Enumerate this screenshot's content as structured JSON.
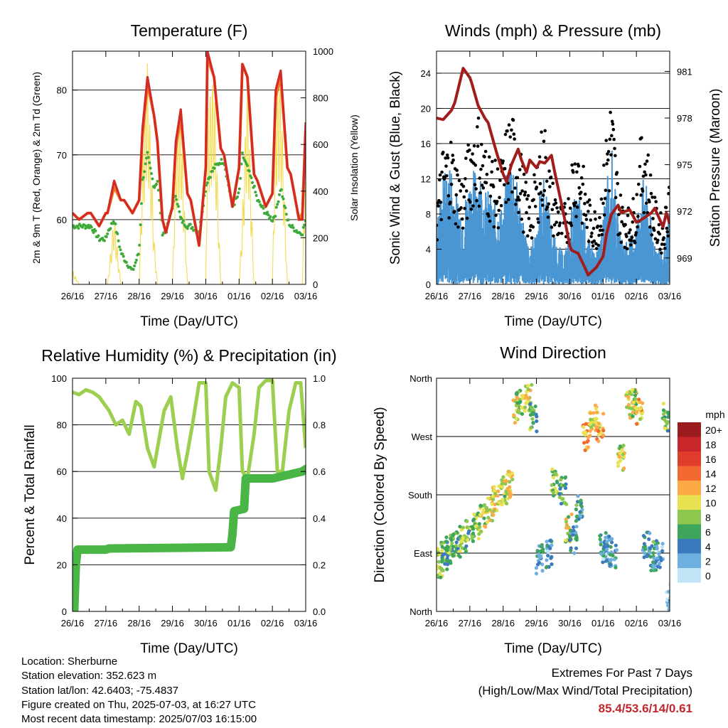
{
  "panels": {
    "temperature": {
      "title": "Temperature (F)",
      "ylabel_left": "2m & 9m T (Red, Orange) & 2m Td (Green)",
      "ylabel_right": "Solar Insolation (Yellow)",
      "xlabel": "Time (Day/UTC)"
    },
    "winds": {
      "title": "Winds (mph) & Pressure (mb)",
      "ylabel_left": "Sonic Wind & Gust (Blue, Black)",
      "ylabel_right": "Station Pressure (Maroon)",
      "xlabel": "Time (Day/UTC)"
    },
    "humidity": {
      "title": "Relative Humidity (%) & Precipitation (in)",
      "ylabel_left": "Percent & Total Rainfall",
      "xlabel": "Time (Day/UTC)"
    },
    "direction": {
      "title": "Wind Direction",
      "ylabel_left": "Direction (Colored By Speed)",
      "xlabel": "Time (Day/UTC)"
    }
  },
  "colorbar": {
    "unit": "mph",
    "labels": [
      "20+",
      "18",
      "16",
      "14",
      "12",
      "10",
      "8",
      "6",
      "4",
      "2",
      "0"
    ],
    "colors": [
      "#9b1c1f",
      "#c7262b",
      "#e03c2c",
      "#f26a32",
      "#fbaa47",
      "#e8e252",
      "#8cc84d",
      "#3ea55c",
      "#3b7bbd",
      "#6db0e0",
      "#bfe4f5"
    ]
  },
  "info": {
    "location": "Location: Sherburne",
    "elevation": "Station elevation: 352.623 m",
    "latlon": "Station lat/lon: 42.6403; -75.4837",
    "created": "Figure created on Thu, 2025-07-03, at 16:27 UTC",
    "recent": "Most recent data timestamp: 2025/07/03 16:15:00"
  },
  "extremes": {
    "title": "Extremes For Past 7 Days",
    "subtitle": "(High/Low/Max Wind/Total Precipitation)",
    "values": "85.4/53.6/14/0.61"
  },
  "colors": {
    "temp2m": "#d42a25",
    "temp9m": "#f0782d",
    "dewpoint": "#3eaa3a",
    "solar": "#f3dc55",
    "wind": "#4a96d2",
    "gust": "#000000",
    "pressure": "#a31c1c",
    "rh": "#9ccf4f",
    "precip": "#48b544"
  },
  "chart_data": [
    {
      "type": "line",
      "title": "Temperature (F)",
      "xlabel": "Time (Day/UTC)",
      "ylabel": "2m & 9m T (Red, Orange) & 2m Td (Green)",
      "y2label": "Solar Insolation (Yellow)",
      "x_ticks": [
        "26/16",
        "27/16",
        "28/16",
        "29/16",
        "30/16",
        "01/16",
        "02/16",
        "03/16"
      ],
      "y_ticks": [
        60,
        70,
        80
      ],
      "y2_ticks": [
        0,
        200,
        400,
        600,
        800,
        1000
      ],
      "ylim": [
        50,
        86
      ],
      "y2lim": [
        0,
        1000
      ],
      "x_days": [
        0,
        0.2,
        0.45,
        0.55,
        0.8,
        1.0,
        1.05,
        1.25,
        1.45,
        1.55,
        1.8,
        2.0,
        2.1,
        2.25,
        2.45,
        2.55,
        2.7,
        2.8,
        3.0,
        3.1,
        3.25,
        3.45,
        3.55,
        3.8,
        4.0,
        4.05,
        4.25,
        4.45,
        4.55,
        4.8,
        5.0,
        5.1,
        5.25,
        5.45,
        5.55,
        5.8,
        6.0,
        6.1,
        6.25,
        6.45,
        6.55,
        6.8,
        6.9,
        7.0
      ],
      "series": [
        {
          "name": "2m T",
          "values": [
            61,
            60,
            61,
            61,
            59,
            61,
            61,
            66,
            63,
            63,
            61,
            63,
            74,
            82,
            76,
            72,
            60,
            58,
            62,
            72,
            77,
            64,
            63,
            56,
            68,
            86,
            82,
            71,
            70,
            62,
            68,
            84,
            82,
            67,
            66,
            62,
            64,
            80,
            83,
            68,
            67,
            60,
            60,
            75
          ]
        },
        {
          "name": "9m T",
          "values": [
            61,
            60,
            61,
            61,
            59,
            61,
            61,
            65,
            63,
            63,
            61,
            63,
            73,
            81,
            76,
            72,
            60,
            58,
            62,
            71,
            76,
            64,
            63,
            56,
            68,
            85,
            82,
            71,
            70,
            62,
            68,
            84,
            82,
            67,
            66,
            62,
            64,
            79,
            82,
            68,
            67,
            60,
            61,
            74
          ]
        },
        {
          "name": "2m Td",
          "values": [
            59,
            59,
            59,
            59,
            57,
            57,
            58,
            60,
            55,
            54,
            52,
            55,
            66,
            70,
            65,
            66,
            58,
            58,
            62,
            64,
            60,
            59,
            59,
            58,
            65,
            66,
            68,
            69,
            69,
            62,
            64,
            70,
            68,
            65,
            63,
            61,
            60,
            61,
            65,
            60,
            59,
            58,
            58,
            60
          ]
        },
        {
          "name": "Solar",
          "axis": "right",
          "values": [
            60,
            0,
            0,
            0,
            0,
            0,
            0,
            300,
            0,
            0,
            0,
            0,
            550,
            950,
            200,
            0,
            0,
            0,
            0,
            600,
            750,
            0,
            0,
            0,
            0,
            750,
            900,
            0,
            0,
            0,
            0,
            300,
            900,
            0,
            0,
            0,
            0,
            800,
            880,
            0,
            0,
            0,
            0,
            700
          ]
        }
      ]
    },
    {
      "type": "line",
      "title": "Winds (mph) & Pressure (mb)",
      "xlabel": "Time (Day/UTC)",
      "ylabel": "Sonic Wind & Gust (Blue, Black)",
      "y2label": "Station Pressure (Maroon)",
      "x_ticks": [
        "26/16",
        "27/16",
        "28/16",
        "29/16",
        "30/16",
        "01/16",
        "02/16",
        "03/16"
      ],
      "y_ticks": [
        0,
        4,
        8,
        12,
        16,
        20,
        24
      ],
      "y2_ticks": [
        969,
        972,
        975,
        978,
        981
      ],
      "ylim": [
        0,
        26.5
      ],
      "y2lim": [
        967.3,
        982.3
      ],
      "x_days": [
        0,
        0.2,
        0.45,
        0.55,
        0.8,
        1.0,
        1.05,
        1.25,
        1.45,
        1.55,
        1.8,
        2.0,
        2.1,
        2.25,
        2.45,
        2.55,
        2.7,
        2.8,
        3.0,
        3.1,
        3.25,
        3.45,
        3.55,
        3.8,
        4.0,
        4.05,
        4.25,
        4.45,
        4.55,
        4.8,
        5.0,
        5.1,
        5.25,
        5.45,
        5.55,
        5.8,
        6.0,
        6.1,
        6.25,
        6.45,
        6.55,
        6.8,
        6.9,
        7.0
      ],
      "series": [
        {
          "name": "Sonic Wind",
          "values": [
            4,
            7,
            8,
            6,
            5,
            7,
            7,
            8,
            6,
            6,
            5,
            5,
            7,
            9,
            6,
            5,
            3,
            2,
            4,
            6,
            7,
            4,
            3,
            2,
            3,
            5,
            6,
            4,
            3,
            2,
            4,
            7,
            9,
            4,
            3,
            3,
            4,
            6,
            7,
            4,
            3,
            2,
            3,
            5
          ]
        },
        {
          "name": "Gust",
          "values": [
            8,
            13,
            14,
            12,
            10,
            14,
            15,
            16,
            13,
            13,
            11,
            12,
            15,
            16,
            14,
            12,
            9,
            8,
            11,
            14,
            15,
            10,
            9,
            7,
            9,
            12,
            14,
            10,
            8,
            7,
            10,
            15,
            18,
            10,
            8,
            7,
            9,
            13,
            15,
            10,
            8,
            6,
            8,
            12
          ]
        },
        {
          "name": "Pressure",
          "axis": "right",
          "values": [
            978.0,
            977.9,
            978.5,
            979.0,
            981.2,
            980.6,
            980.3,
            978.8,
            978.0,
            977.7,
            975.8,
            974.4,
            973.9,
            975.0,
            976.0,
            975.3,
            974.5,
            975.3,
            974.8,
            975.2,
            975.1,
            975.6,
            974.5,
            972.0,
            969.8,
            969.5,
            969.3,
            968.4,
            967.9,
            968.4,
            969.1,
            970.5,
            971.8,
            972.4,
            971.9,
            972.1,
            971.3,
            971.4,
            971.6,
            971.9,
            972.2,
            971.0,
            971.9,
            971.2
          ]
        }
      ]
    },
    {
      "type": "line",
      "title": "Relative Humidity (%) & Precipitation (in)",
      "xlabel": "Time (Day/UTC)",
      "ylabel": "Percent & Total Rainfall",
      "x_ticks": [
        "26/16",
        "27/16",
        "28/16",
        "29/16",
        "30/16",
        "01/16",
        "02/16",
        "03/16"
      ],
      "y_ticks": [
        0,
        20,
        40,
        60,
        80,
        100
      ],
      "y2_ticks": [
        0.0,
        0.2,
        0.4,
        0.6,
        0.8,
        1.0
      ],
      "ylim": [
        0,
        100
      ],
      "y2lim": [
        0,
        1
      ],
      "series": [
        {
          "name": "RH",
          "x_days": [
            0,
            0.2,
            0.4,
            0.6,
            0.8,
            1.0,
            1.1,
            1.3,
            1.5,
            1.7,
            1.9,
            2.05,
            2.25,
            2.45,
            2.6,
            2.75,
            2.95,
            3.15,
            3.3,
            3.45,
            3.6,
            3.8,
            4.0,
            4.1,
            4.3,
            4.45,
            4.6,
            4.8,
            5.0,
            5.1,
            5.25,
            5.45,
            5.6,
            5.8,
            6.0,
            6.15,
            6.3,
            6.5,
            6.7,
            6.85,
            7.0
          ],
          "values": [
            94,
            93,
            95,
            94,
            92,
            88,
            86,
            80,
            82,
            76,
            90,
            88,
            70,
            62,
            74,
            86,
            92,
            70,
            57,
            68,
            80,
            98,
            98,
            60,
            52,
            70,
            92,
            98,
            96,
            60,
            57,
            76,
            96,
            99,
            99,
            60,
            60,
            86,
            98,
            98,
            70
          ]
        },
        {
          "name": "Precipitation",
          "axis": "right",
          "x_days": [
            0,
            0.05,
            0.1,
            0.15,
            1.0,
            1.1,
            4.75,
            4.8,
            4.85,
            5.15,
            5.2,
            5.25,
            6.0,
            6.9,
            7.0
          ],
          "values": [
            0.0,
            0.0,
            0.2,
            0.265,
            0.265,
            0.27,
            0.275,
            0.33,
            0.43,
            0.44,
            0.57,
            0.57,
            0.57,
            0.6,
            0.61
          ]
        }
      ]
    },
    {
      "type": "scatter",
      "title": "Wind Direction",
      "xlabel": "Time (Day/UTC)",
      "ylabel": "Direction (Colored By Speed)",
      "x_ticks": [
        "26/16",
        "27/16",
        "28/16",
        "29/16",
        "30/16",
        "01/16",
        "02/16",
        "03/16"
      ],
      "y_ticks": [
        "North",
        "East",
        "South",
        "West",
        "North"
      ],
      "ylim": [
        0,
        360
      ],
      "x_days": [
        0.1,
        0.25,
        0.4,
        0.6,
        0.8,
        1.0,
        1.2,
        1.4,
        1.6,
        1.8,
        2.0,
        2.2,
        2.4,
        2.5,
        2.75,
        2.9,
        3.1,
        3.4,
        3.55,
        3.8,
        3.95,
        4.1,
        4.3,
        4.5,
        4.7,
        4.9,
        5.0,
        5.1,
        5.3,
        5.55,
        5.8,
        5.95,
        6.1,
        6.3,
        6.5,
        6.7,
        6.9,
        7.0
      ],
      "direction_deg": [
        75,
        85,
        95,
        100,
        110,
        120,
        130,
        145,
        160,
        175,
        185,
        195,
        310,
        325,
        330,
        300,
        80,
        90,
        200,
        185,
        130,
        110,
        160,
        270,
        300,
        285,
        100,
        95,
        90,
        240,
        320,
        320,
        310,
        100,
        85,
        90,
        300,
        20
      ],
      "speed_mph": [
        8,
        6,
        7,
        6,
        8,
        7,
        8,
        9,
        10,
        10,
        9,
        10,
        9,
        8,
        10,
        7,
        4,
        3,
        8,
        6,
        9,
        4,
        5,
        12,
        10,
        11,
        4,
        3,
        4,
        9,
        10,
        9,
        11,
        4,
        5,
        3,
        7,
        2
      ]
    }
  ]
}
